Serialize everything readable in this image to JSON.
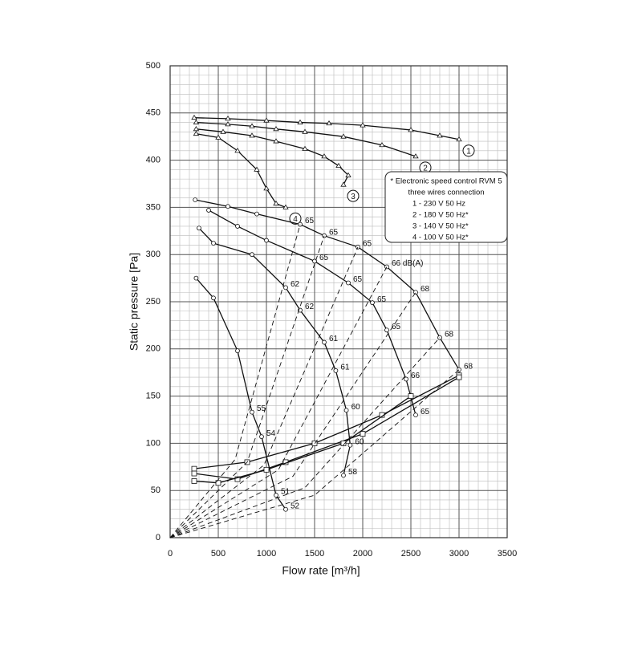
{
  "chart_data": {
    "type": "line",
    "xlabel": "Flow rate [m³/h]",
    "ylabel": "Static pressure [Pa]",
    "xlim": [
      0,
      3500
    ],
    "ylim": [
      0,
      500
    ],
    "xticks": [
      0,
      500,
      1000,
      1500,
      2000,
      2500,
      3000,
      3500
    ],
    "yticks": [
      0,
      50,
      100,
      150,
      200,
      250,
      300,
      350,
      400,
      450,
      500
    ],
    "grid": true,
    "legend_note": [
      "* Electronic speed control RVM 5",
      "three wires connection",
      "1 - 230 V 50 Hz",
      "2 - 180 V 50 Hz*",
      "3 - 140 V 50 Hz*",
      "4 - 100 V 50 Hz*"
    ],
    "series": [
      {
        "name": "1",
        "color": "#111",
        "style": "solid",
        "marker": "triangle",
        "x": [
          250,
          600,
          1000,
          1350,
          1650,
          2000,
          2500,
          2800,
          3000
        ],
        "values": [
          445,
          444,
          442,
          440,
          439,
          437,
          432,
          426,
          422
        ]
      },
      {
        "name": "2",
        "color": "#111",
        "style": "solid",
        "marker": "triangle",
        "x": [
          270,
          600,
          850,
          1100,
          1400,
          1800,
          2200,
          2550
        ],
        "values": [
          440,
          438,
          436,
          433,
          430,
          425,
          416,
          404
        ]
      },
      {
        "name": "3",
        "color": "#111",
        "style": "solid",
        "marker": "triangle",
        "x": [
          270,
          550,
          850,
          1100,
          1400,
          1600,
          1750,
          1850,
          1800
        ],
        "values": [
          433,
          430,
          426,
          420,
          412,
          404,
          394,
          384,
          374
        ]
      },
      {
        "name": "4",
        "color": "#111",
        "style": "solid",
        "marker": "triangle",
        "x": [
          270,
          500,
          700,
          900,
          1000,
          1100,
          1200
        ],
        "values": [
          428,
          424,
          410,
          390,
          370,
          354,
          350
        ]
      },
      {
        "color": "#111",
        "style": "solid",
        "marker": "circle",
        "x": [
          260,
          600,
          900,
          1350,
          1600,
          1950,
          2250,
          2550,
          2800,
          3000
        ],
        "values": [
          358,
          351,
          343,
          332,
          320,
          308,
          287,
          260,
          212,
          178
        ],
        "db_labels": [
          null,
          null,
          null,
          "65",
          "65",
          "65",
          "66 dB(A)",
          "68",
          "68",
          "68"
        ]
      },
      {
        "color": "#111",
        "style": "solid",
        "marker": "circle",
        "x": [
          400,
          700,
          1000,
          1500,
          1850,
          2100,
          2250,
          2450,
          2550
        ],
        "values": [
          347,
          330,
          315,
          293,
          270,
          249,
          220,
          168,
          130
        ],
        "db_labels": [
          null,
          null,
          null,
          "65",
          "65",
          "65",
          "65",
          "66",
          "65"
        ]
      },
      {
        "color": "#111",
        "style": "solid",
        "marker": "circle",
        "x": [
          300,
          450,
          850,
          1200,
          1350,
          1600,
          1720,
          1830,
          1870,
          1800
        ],
        "values": [
          328,
          312,
          300,
          265,
          241,
          207,
          177,
          135,
          98,
          66
        ],
        "db_labels": [
          null,
          null,
          null,
          "62",
          "62",
          "61",
          "61",
          "60",
          "60",
          "58"
        ]
      },
      {
        "color": "#111",
        "style": "solid",
        "marker": "circle",
        "x": [
          270,
          450,
          700,
          850,
          950,
          1100,
          1200
        ],
        "values": [
          275,
          254,
          198,
          133,
          107,
          45,
          30
        ],
        "db_labels": [
          null,
          null,
          null,
          "55",
          "54",
          "51",
          "52"
        ]
      },
      {
        "color": "#111",
        "style": "solid",
        "marker": "square",
        "x": [
          250,
          800,
          1500,
          2200,
          3000
        ],
        "values": [
          73,
          80,
          100,
          130,
          172
        ]
      },
      {
        "color": "#111",
        "style": "solid",
        "marker": "square",
        "x": [
          250,
          700,
          1200,
          2000,
          3000
        ],
        "values": [
          68,
          62,
          80,
          110,
          170
        ]
      },
      {
        "color": "#111",
        "style": "solid",
        "marker": "square",
        "x": [
          250,
          500,
          1000,
          1800,
          2500
        ],
        "values": [
          60,
          58,
          72,
          100,
          150
        ]
      },
      {
        "color": "#111",
        "style": "dashed",
        "x": [
          0,
          675,
          1350
        ],
        "values": [
          0,
          83,
          332
        ]
      },
      {
        "color": "#111",
        "style": "dashed",
        "x": [
          0,
          800,
          1600
        ],
        "values": [
          0,
          80,
          320
        ]
      },
      {
        "color": "#111",
        "style": "dashed",
        "x": [
          0,
          975,
          1950
        ],
        "values": [
          0,
          77,
          308
        ]
      },
      {
        "color": "#111",
        "style": "dashed",
        "x": [
          0,
          1125,
          2250
        ],
        "values": [
          0,
          72,
          287
        ]
      },
      {
        "color": "#111",
        "style": "dashed",
        "x": [
          0,
          1275,
          2550
        ],
        "values": [
          0,
          65,
          260
        ]
      },
      {
        "color": "#111",
        "style": "dashed",
        "x": [
          0,
          1400,
          2800
        ],
        "values": [
          0,
          53,
          212
        ]
      },
      {
        "color": "#111",
        "style": "dashed",
        "x": [
          0,
          1500,
          3000
        ],
        "values": [
          0,
          45,
          178
        ]
      }
    ]
  }
}
